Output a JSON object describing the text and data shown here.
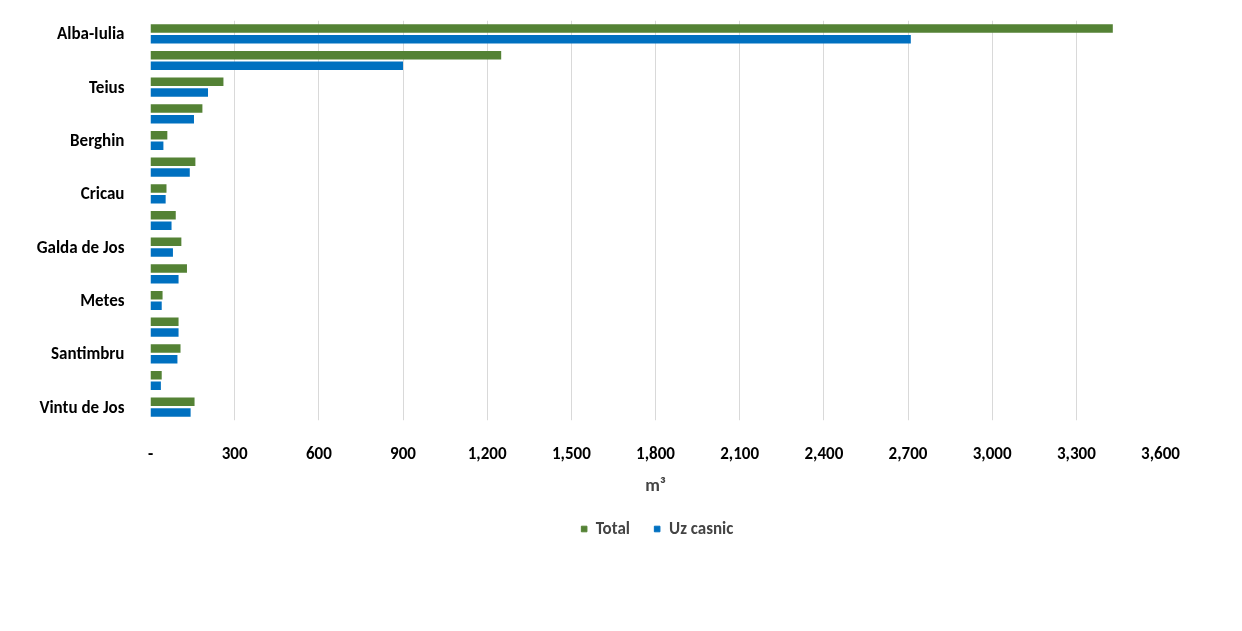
{
  "chart_data": {
    "type": "bar",
    "orientation": "horizontal",
    "xlabel": "m³",
    "categories": [
      "Alba-Iulia",
      null,
      "Teius",
      null,
      "Berghin",
      null,
      "Cricau",
      null,
      "Galda de Jos",
      null,
      "Metes",
      null,
      "Santimbru",
      null,
      "Vintu de Jos"
    ],
    "series": [
      {
        "name": "Total",
        "color": "#548235",
        "values": [
          3430,
          1250,
          260,
          185,
          60,
          160,
          57,
          90,
          110,
          130,
          43,
          100,
          107,
          40,
          157
        ]
      },
      {
        "name": "Uz casnic",
        "color": "#0070c0",
        "values": [
          2710,
          900,
          205,
          155,
          46,
          140,
          54,
          75,
          80,
          100,
          40,
          100,
          96,
          37,
          143
        ]
      }
    ],
    "xlim": [
      0,
      3600
    ],
    "xticks": [
      {
        "value": 0,
        "label": "-"
      },
      {
        "value": 300,
        "label": "300"
      },
      {
        "value": 600,
        "label": "600"
      },
      {
        "value": 900,
        "label": "900"
      },
      {
        "value": 1200,
        "label": "1,200"
      },
      {
        "value": 1500,
        "label": "1,500"
      },
      {
        "value": 1800,
        "label": "1,800"
      },
      {
        "value": 2100,
        "label": "2,100"
      },
      {
        "value": 2400,
        "label": "2,400"
      },
      {
        "value": 2700,
        "label": "2,700"
      },
      {
        "value": 3000,
        "label": "3,000"
      },
      {
        "value": 3300,
        "label": "3,300"
      },
      {
        "value": 3600,
        "label": "3,600"
      }
    ],
    "grid": "x",
    "legend": "bottom"
  }
}
